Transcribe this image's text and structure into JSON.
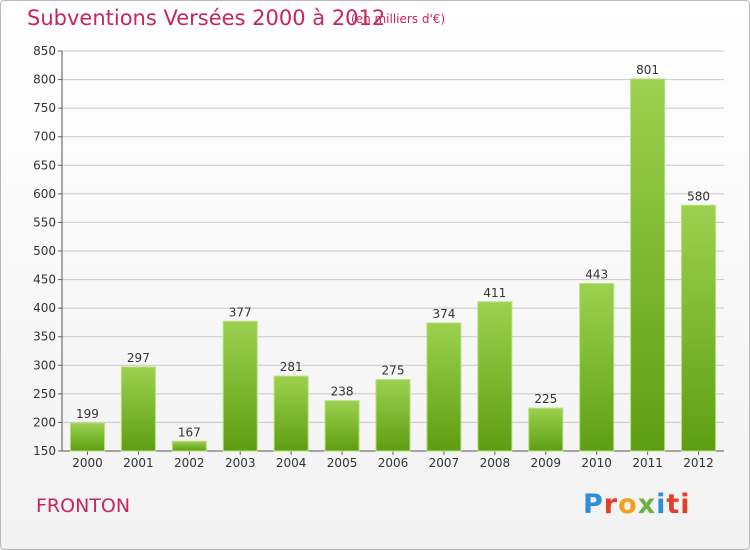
{
  "header": {
    "title": "Subventions Versées 2000 à 2012",
    "subtitle": "(en milliers d'€)"
  },
  "footer": {
    "town": "FRONTON",
    "logo_text": "Proxiti"
  },
  "colors": {
    "title": "#c8245d",
    "bar_top": "#9cd14f",
    "bar_bottom": "#5e9e12",
    "grid": "#c8c8c8"
  },
  "chart_data": {
    "type": "bar",
    "title": "Subventions Versées 2000 à 2012",
    "subtitle": "(en milliers d'€)",
    "categories": [
      "2000",
      "2001",
      "2002",
      "2003",
      "2004",
      "2005",
      "2006",
      "2007",
      "2008",
      "2009",
      "2010",
      "2011",
      "2012"
    ],
    "values": [
      199,
      297,
      167,
      377,
      281,
      238,
      275,
      374,
      411,
      225,
      443,
      801,
      580
    ],
    "ylim": [
      150,
      850
    ],
    "yticks": [
      150,
      200,
      250,
      300,
      350,
      400,
      450,
      500,
      550,
      600,
      650,
      700,
      750,
      800,
      850
    ],
    "grid": true,
    "data_labels": true
  }
}
